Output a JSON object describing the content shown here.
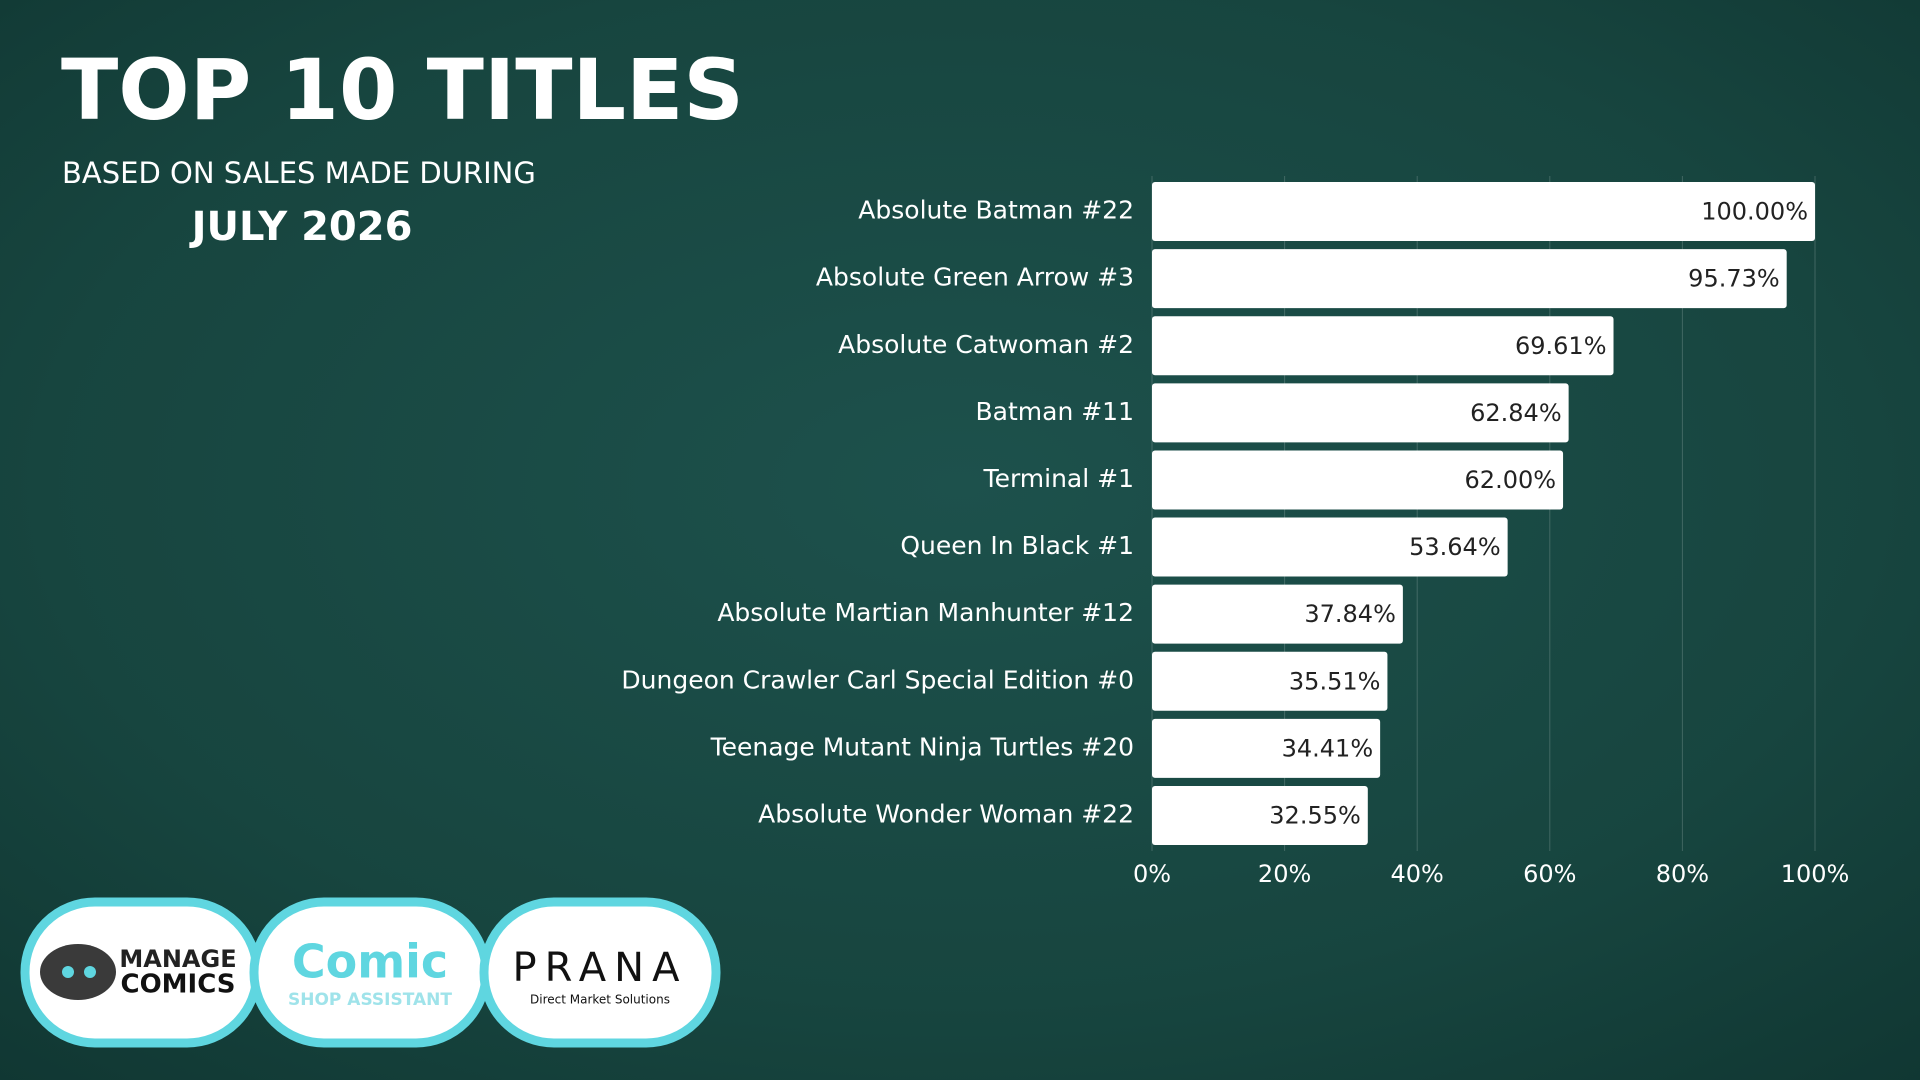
{
  "chart_data": {
    "type": "bar",
    "orientation": "horizontal",
    "title": "TOP 10 TITLES",
    "subtitle": "BASED ON SALES MADE DURING",
    "period": "JULY 2026",
    "categories": [
      "Absolute Batman #22",
      "Absolute Green Arrow #3",
      "Absolute Catwoman #2",
      "Batman #11",
      "Terminal #1",
      "Queen In Black #1",
      "Absolute Martian Manhunter #12",
      "Dungeon Crawler Carl Special Edition #0",
      "Teenage Mutant Ninja Turtles #20",
      "Absolute Wonder Woman #22"
    ],
    "values": [
      100.0,
      95.73,
      69.61,
      62.84,
      62.0,
      53.64,
      37.84,
      35.51,
      34.41,
      32.55
    ],
    "value_labels": [
      "100.00%",
      "95.73%",
      "69.61%",
      "62.84%",
      "62.00%",
      "53.64%",
      "37.84%",
      "35.51%",
      "34.41%",
      "32.55%"
    ],
    "color": "#ffffff",
    "xlim": [
      0,
      100
    ],
    "xticks": [
      {
        "value": 0,
        "label": "0%"
      },
      {
        "value": 20,
        "label": "20%"
      },
      {
        "value": 40,
        "label": "40%"
      },
      {
        "value": 60,
        "label": "60%"
      },
      {
        "value": 80,
        "label": "80%"
      },
      {
        "value": 100,
        "label": "100%"
      }
    ],
    "grid": true
  },
  "logos": [
    {
      "line1": "MANAGE",
      "line2": "COMICS"
    },
    {
      "line1": "Comic",
      "line2": "SHOP ASSISTANT"
    },
    {
      "line1": "PRANA",
      "line2": "Direct Market Solutions"
    }
  ]
}
